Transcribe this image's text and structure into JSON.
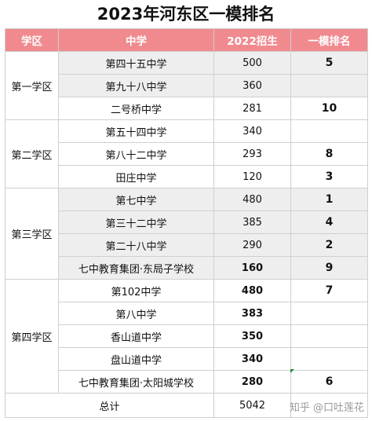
{
  "title": "2023年河东区一模排名",
  "headers": {
    "district": "学区",
    "school": "中学",
    "enroll": "2022招生",
    "rank": "一模排名"
  },
  "districts": [
    {
      "name": "第一学区",
      "rows": [
        {
          "school": "第四十五中学",
          "enroll": "500",
          "rank": "5"
        },
        {
          "school": "第九十八中学",
          "enroll": "360",
          "rank": ""
        },
        {
          "school": "二号桥中学",
          "enroll": "281",
          "rank": "10"
        }
      ]
    },
    {
      "name": "第二学区",
      "rows": [
        {
          "school": "第五十四中学",
          "enroll": "340",
          "rank": ""
        },
        {
          "school": "第八十二中学",
          "enroll": "293",
          "rank": "8"
        },
        {
          "school": "田庄中学",
          "enroll": "120",
          "rank": "3"
        }
      ]
    },
    {
      "name": "第三学区",
      "rows": [
        {
          "school": "第七中学",
          "enroll": "480",
          "rank": "1"
        },
        {
          "school": "第三十二中学",
          "enroll": "385",
          "rank": "4"
        },
        {
          "school": "第二十八中学",
          "enroll": "290",
          "rank": "2"
        },
        {
          "school": "七中教育集团·东局子学校",
          "enroll": "160",
          "rank": "9"
        }
      ]
    },
    {
      "name": "第四学区",
      "rows": [
        {
          "school": "第102中学",
          "enroll": "480",
          "rank": "7"
        },
        {
          "school": "第八中学",
          "enroll": "383",
          "rank": ""
        },
        {
          "school": "香山道中学",
          "enroll": "350",
          "rank": ""
        },
        {
          "school": "盘山道中学",
          "enroll": "340",
          "rank": ""
        },
        {
          "school": "七中教育集团·太阳城学校",
          "enroll": "280",
          "rank": "6"
        }
      ]
    }
  ],
  "total": {
    "label": "总计",
    "enroll": "5042"
  },
  "watermark": "知乎 @口吐莲花"
}
